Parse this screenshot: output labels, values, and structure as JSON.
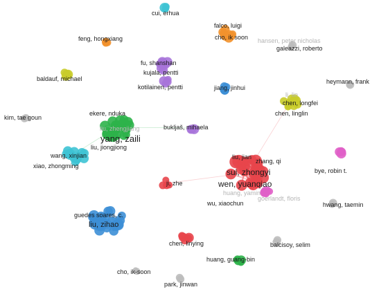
{
  "network": {
    "clusters": [
      {
        "id": "red",
        "color": "#e8454b"
      },
      {
        "id": "green",
        "color": "#2db34a"
      },
      {
        "id": "blue",
        "color": "#3d8fd6"
      },
      {
        "id": "cyan",
        "color": "#3ec3d4"
      },
      {
        "id": "purple",
        "color": "#a774d9"
      },
      {
        "id": "orange",
        "color": "#f2922e"
      },
      {
        "id": "olive",
        "color": "#c9cc2a"
      },
      {
        "id": "pink",
        "color": "#e060c8"
      },
      {
        "id": "gray",
        "color": "#bdbdbd"
      }
    ],
    "labels": [
      {
        "text": "cui, erhua"
      },
      {
        "text": "falco, luigi"
      },
      {
        "text": "cho, ik soon"
      },
      {
        "text": "hansen, peter nicholas"
      },
      {
        "text": "galeazzi, roberto"
      },
      {
        "text": "feng, hongxiang"
      },
      {
        "text": "fu, shanshan"
      },
      {
        "text": "kujala, pentti"
      },
      {
        "text": "kotilainen, pentti"
      },
      {
        "text": "baldauf, michael"
      },
      {
        "text": "heymann, frank"
      },
      {
        "text": "jiang, jinhui"
      },
      {
        "text": "li, lin"
      },
      {
        "text": "chen, longfei"
      },
      {
        "text": "chen, linglin"
      },
      {
        "text": "kim, tae goun"
      },
      {
        "text": "ekere, nduka"
      },
      {
        "text": "liu, zhengjiang"
      },
      {
        "text": "yang, zaili"
      },
      {
        "text": "bukljaš, mihaela"
      },
      {
        "text": "wang, xinjian"
      },
      {
        "text": "liu, jiongjiong"
      },
      {
        "text": "xiao, zhongming"
      },
      {
        "text": "liu, jian"
      },
      {
        "text": "zhang, qi"
      },
      {
        "text": "sui, zhongyi"
      },
      {
        "text": "bye, robin t."
      },
      {
        "text": "wen, yuanqiao"
      },
      {
        "text": "huang, yamin"
      },
      {
        "text": "goerlandt, floris"
      },
      {
        "text": "ji, zhe"
      },
      {
        "text": "wu, xiaochun"
      },
      {
        "text": "hwang, taemin"
      },
      {
        "text": "guedes soares, c."
      },
      {
        "text": "liu, zihao"
      },
      {
        "text": "chen, linying"
      },
      {
        "text": "balcisoy, selim"
      },
      {
        "text": "huang, guang-bin"
      },
      {
        "text": "cho, ik-soon"
      },
      {
        "text": "park, jinwan"
      }
    ]
  }
}
